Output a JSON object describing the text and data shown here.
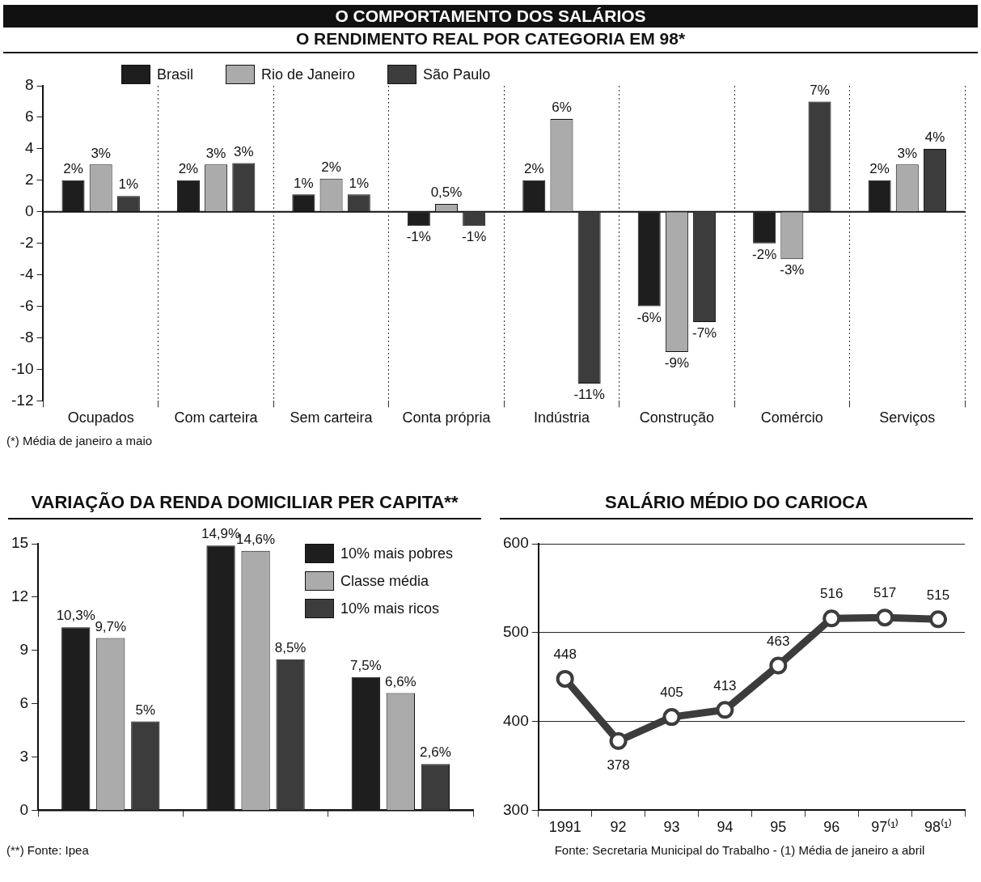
{
  "chart_data": [
    {
      "type": "bar",
      "title": "O COMPORTAMENTO DOS SALÁRIOS",
      "subtitle": "O RENDIMENTO REAL POR CATEGORIA EM 98*",
      "categories": [
        "Ocupados",
        "Com carteira",
        "Sem carteira",
        "Conta própria",
        "Indústria",
        "Construção",
        "Comércio",
        "Serviços"
      ],
      "series": [
        {
          "name": "Brasil",
          "color": "#1e1e1e",
          "values": [
            2.0,
            2.0,
            1.1,
            -0.9,
            2.0,
            -6.0,
            -2.0,
            2.0
          ],
          "value_labels": [
            "2%",
            "2%",
            "1%",
            "-1%",
            "2%",
            "-6%",
            "-2%",
            "2%"
          ]
        },
        {
          "name": "Rio de Janeiro",
          "color": "#ababab",
          "values": [
            3.0,
            3.0,
            2.1,
            0.5,
            5.9,
            -8.9,
            -3.0,
            3.0
          ],
          "value_labels": [
            "3%",
            "3%",
            "2%",
            "0,5%",
            "6%",
            "-9%",
            "-3%",
            "3%"
          ]
        },
        {
          "name": "São Paulo",
          "color": "#3c3c3c",
          "values": [
            1.0,
            3.1,
            1.1,
            -0.9,
            -10.9,
            -7.0,
            7.0,
            4.0
          ],
          "value_labels": [
            "1%",
            "3%",
            "1%",
            "-1%",
            "-11%",
            "-7%",
            "7%",
            "4%"
          ]
        }
      ],
      "ylim": [
        -12,
        8
      ],
      "yticks": [
        -12,
        -10,
        -8,
        -6,
        -4,
        -2,
        0,
        2,
        4,
        6,
        8
      ],
      "grid": "x",
      "legend": "top",
      "annotations": [
        "(*) Média de janeiro a maio"
      ]
    },
    {
      "type": "bar",
      "title": "VARIAÇÃO DA RENDA DOMICILIAR PER CAPITA**",
      "categories": [
        null,
        null,
        null
      ],
      "series": [
        {
          "name": "10% mais pobres",
          "color": "#1e1e1e",
          "values": [
            10.3,
            14.9,
            7.5
          ],
          "value_labels": [
            "10,3%",
            "14,9%",
            "7,5%"
          ]
        },
        {
          "name": "Classe média",
          "color": "#ababab",
          "values": [
            9.7,
            14.6,
            6.6
          ],
          "value_labels": [
            "9,7%",
            "14,6%",
            "6,6%"
          ]
        },
        {
          "name": "10% mais ricos",
          "color": "#3c3c3c",
          "values": [
            5,
            8.5,
            2.6
          ],
          "value_labels": [
            "5%",
            "8,5%",
            "2,6%"
          ]
        }
      ],
      "ylim": [
        0,
        15
      ],
      "yticks": [
        0,
        3,
        6,
        9,
        12,
        15
      ],
      "legend": "top right",
      "annotations": [
        "(**) Fonte: Ipea"
      ]
    },
    {
      "type": "line",
      "title": "SALÁRIO MÉDIO DO CARIOCA",
      "categories": [
        "1991",
        "92",
        "93",
        "94",
        "95",
        "96",
        "97⁽¹⁾",
        "98⁽¹⁾"
      ],
      "series": [
        {
          "color": "#3c3c3c",
          "values": [
            448,
            378,
            405,
            413,
            463,
            516,
            517,
            515
          ]
        }
      ],
      "ylim": [
        300,
        600
      ],
      "yticks": [
        300,
        400,
        500,
        600
      ],
      "grid": "y",
      "marker": "circle",
      "line_style": "solid",
      "data_labels": true,
      "annotations": [
        "Fonte: Secretaria Municipal do Trabalho - (1) Média de janeiro a abril"
      ]
    }
  ]
}
